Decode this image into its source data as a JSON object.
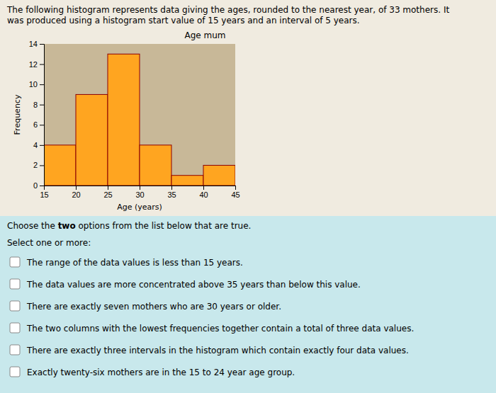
{
  "chart_data": {
    "type": "histogram",
    "title": "Age mum",
    "x_label": "Age (years)",
    "y_label": "Frequency",
    "bins": [
      15,
      20,
      25,
      30,
      35,
      40,
      45
    ],
    "values": [
      4,
      9,
      13,
      4,
      1,
      2
    ],
    "color": "#FFA520",
    "xlim": [
      15,
      45
    ],
    "ylim": [
      0,
      14
    ],
    "xticks": [
      15,
      20,
      25,
      30,
      35,
      40,
      45
    ],
    "yticks": [
      0,
      2,
      4,
      6,
      8,
      10,
      12,
      14
    ],
    "grid": false,
    "annotations": [
      "The following histogram represents data giving the ages, rounded to the nearest year, of 33 mothers. It",
      "was produced using a histogram start value of 15 years and an interval of 5 years.",
      "Choose the ",
      "two",
      " options from the list below that are true.",
      "Select one or more:",
      "The range of the data values is less than 15 years.",
      "The data values are more concentrated above 35 years than below this value.",
      "There are exactly seven mothers who are 30 years or older.",
      "The two columns with the lowest frequencies together contain a total of three data values.",
      "There are exactly three intervals in the histogram which contain exactly four data values.",
      "Exactly twenty-six mothers are in the 15 to 24 year age group."
    ]
  }
}
